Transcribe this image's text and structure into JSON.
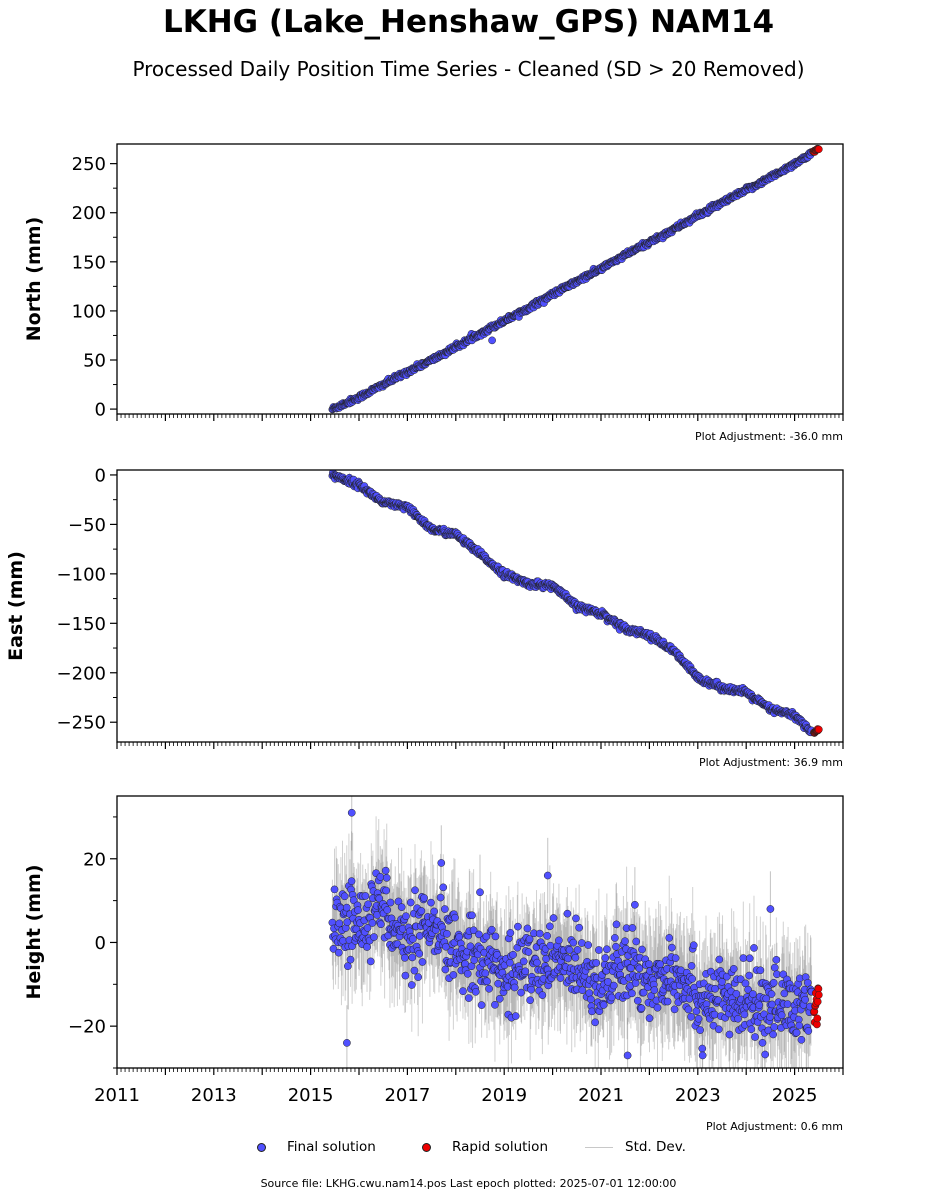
{
  "title": "LKHG (Lake_Henshaw_GPS) NAM14",
  "subtitle": "Processed Daily Position Time Series - Cleaned (SD > 20 Removed)",
  "source_text": "Source file: LKHG.cwu.nam14.pos  Last epoch plotted: 2025-07-01 12:00:00",
  "colors": {
    "final": "#5050ff",
    "rapid": "#ee0000",
    "stddev": "#c8c8c8",
    "edge": "#222222"
  },
  "legend": [
    {
      "label": "Final solution",
      "kind": "marker",
      "color": "#5050ff"
    },
    {
      "label": "Rapid solution",
      "kind": "marker",
      "color": "#ee0000"
    },
    {
      "label": "Std. Dev.",
      "kind": "line",
      "color": "#c8c8c8"
    }
  ],
  "chart_data": [
    {
      "type": "scatter",
      "ylabel": "North (mm)",
      "adjustment": "Plot Adjustment: -36.0 mm",
      "xlim": [
        2011,
        2026
      ],
      "ylim": [
        -5,
        270
      ],
      "yticks": [
        {
          "value": 0,
          "label": "0"
        },
        {
          "value": 50,
          "label": "50"
        },
        {
          "value": 100,
          "label": "100"
        },
        {
          "value": 150,
          "label": "150"
        },
        {
          "value": 200,
          "label": "200"
        },
        {
          "value": 250,
          "label": "250"
        }
      ],
      "series": [
        {
          "name": "Final solution",
          "x": [
            2015.45,
            2016.0,
            2016.5,
            2017.0,
            2017.5,
            2018.0,
            2018.5,
            2019.0,
            2019.5,
            2020.0,
            2020.5,
            2021.0,
            2021.5,
            2022.0,
            2022.5,
            2023.0,
            2023.5,
            2024.0,
            2024.5,
            2025.0,
            2025.35
          ],
          "y": [
            0,
            12,
            25,
            38,
            50,
            63,
            77,
            90,
            103,
            117,
            130,
            143,
            157,
            170,
            183,
            197,
            210,
            223,
            236,
            250,
            260
          ]
        },
        {
          "name": "Rapid solution",
          "x": [
            2025.38,
            2025.45,
            2025.5
          ],
          "y": [
            262,
            264,
            265
          ]
        }
      ],
      "outliers": [
        {
          "x": 2018.75,
          "y": 70
        }
      ],
      "noise_sd": 1.2
    },
    {
      "type": "scatter",
      "ylabel": "East (mm)",
      "adjustment": "Plot Adjustment: 36.9 mm",
      "xlim": [
        2011,
        2026
      ],
      "ylim": [
        -270,
        5
      ],
      "yticks": [
        {
          "value": 0,
          "label": "0"
        },
        {
          "value": -50,
          "label": "−50"
        },
        {
          "value": -100,
          "label": "−100"
        },
        {
          "value": -150,
          "label": "−150"
        },
        {
          "value": -200,
          "label": "−200"
        },
        {
          "value": -250,
          "label": "−250"
        }
      ],
      "series": [
        {
          "name": "Final solution",
          "x": [
            2015.45,
            2016.0,
            2016.5,
            2017.0,
            2017.5,
            2018.0,
            2018.5,
            2019.0,
            2019.5,
            2020.0,
            2020.5,
            2021.0,
            2021.5,
            2022.0,
            2022.5,
            2023.0,
            2023.5,
            2024.0,
            2024.5,
            2025.0,
            2025.35
          ],
          "y": [
            0,
            -10,
            -28,
            -33,
            -55,
            -60,
            -80,
            -100,
            -110,
            -112,
            -133,
            -140,
            -155,
            -162,
            -178,
            -205,
            -215,
            -220,
            -237,
            -243,
            -260
          ]
        },
        {
          "name": "Rapid solution",
          "x": [
            2025.4,
            2025.5
          ],
          "y": [
            -260,
            -258
          ]
        }
      ],
      "outliers": [],
      "noise_sd": 1.5
    },
    {
      "type": "scatter",
      "ylabel": "Height (mm)",
      "adjustment": "Plot Adjustment: 0.6 mm",
      "xlim": [
        2011,
        2026
      ],
      "ylim": [
        -30,
        35
      ],
      "yticks": [
        {
          "value": -20,
          "label": "−20"
        },
        {
          "value": 0,
          "label": "0"
        },
        {
          "value": 20,
          "label": "20"
        }
      ],
      "xticks": [
        {
          "value": 2011,
          "label": "2011"
        },
        {
          "value": 2013,
          "label": "2013"
        },
        {
          "value": 2015,
          "label": "2015"
        },
        {
          "value": 2017,
          "label": "2017"
        },
        {
          "value": 2019,
          "label": "2019"
        },
        {
          "value": 2021,
          "label": "2021"
        },
        {
          "value": 2023,
          "label": "2023"
        },
        {
          "value": 2025,
          "label": "2025"
        }
      ],
      "series": [
        {
          "name": "Final solution",
          "x": [
            2015.45,
            2016.0,
            2016.5,
            2017.0,
            2017.5,
            2018.0,
            2018.5,
            2019.0,
            2019.5,
            2020.0,
            2020.5,
            2021.0,
            2021.5,
            2022.0,
            2022.5,
            2023.0,
            2023.5,
            2024.0,
            2024.5,
            2025.0,
            2025.35
          ],
          "y": [
            4,
            5,
            10,
            -1,
            3,
            -2,
            -3,
            -8,
            -5,
            -5,
            -4,
            -10,
            -6,
            -10,
            -6,
            -13,
            -14,
            -15,
            -14,
            -16,
            -13
          ]
        },
        {
          "name": "Rapid solution",
          "x": [
            2025.4,
            2025.45,
            2025.5
          ],
          "y": [
            -14,
            -16,
            -12
          ]
        }
      ],
      "outliers": [
        {
          "x": 2015.85,
          "y": 31
        },
        {
          "x": 2015.75,
          "y": -24
        },
        {
          "x": 2017.7,
          "y": 19
        },
        {
          "x": 2019.9,
          "y": 16
        },
        {
          "x": 2018.5,
          "y": 12
        },
        {
          "x": 2021.7,
          "y": 9
        },
        {
          "x": 2024.5,
          "y": 8
        },
        {
          "x": 2021.55,
          "y": -27
        },
        {
          "x": 2023.1,
          "y": -27
        }
      ],
      "noise_sd": 4.5
    }
  ]
}
